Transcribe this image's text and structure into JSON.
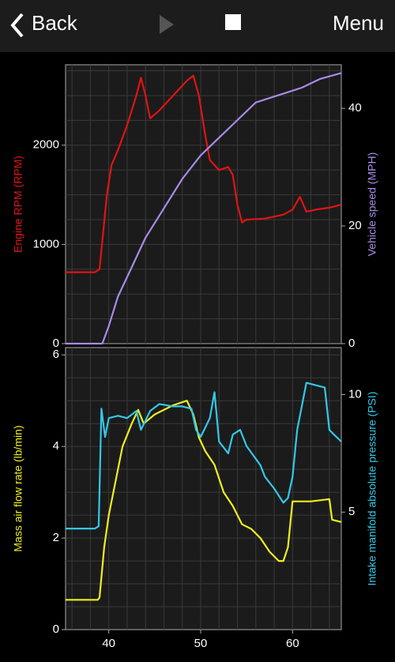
{
  "toolbar": {
    "back": "Back",
    "menu": "Menu"
  },
  "chart_data": [
    {
      "type": "line",
      "ylabel": "Engine RPM (RPM)",
      "y2label": "Vehicle speed (MPH)",
      "xlim": [
        35.3,
        65.3
      ],
      "xgrid": [
        36,
        38,
        40,
        42,
        44,
        46,
        48,
        50,
        52,
        54,
        56,
        58,
        60,
        62,
        64
      ],
      "ylim": [
        0,
        2810
      ],
      "yticks": [
        0,
        1000,
        2000
      ],
      "ygrid": [
        250,
        500,
        750,
        1000,
        1250,
        1500,
        1750,
        2000,
        2250,
        2500,
        2750
      ],
      "y2lim": [
        0,
        47.4
      ],
      "y2ticks": [
        0,
        20,
        40
      ],
      "series": [
        {
          "name": "Engine RPM",
          "color": "#e01414",
          "x": [
            35.3,
            38.5,
            39,
            39.8,
            40.3,
            41,
            42,
            43,
            43.5,
            44,
            44.5,
            45.5,
            46.5,
            47.5,
            48.5,
            49.2,
            49.8,
            50.5,
            51,
            52,
            53,
            53.5,
            54,
            54.5,
            55,
            57,
            59,
            60,
            60.8,
            61.5,
            62.5,
            64,
            65.3
          ],
          "values": [
            720,
            720,
            750,
            1500,
            1800,
            1950,
            2200,
            2500,
            2680,
            2500,
            2270,
            2350,
            2450,
            2550,
            2650,
            2700,
            2500,
            2100,
            1850,
            1750,
            1780,
            1700,
            1400,
            1220,
            1250,
            1260,
            1300,
            1350,
            1480,
            1330,
            1350,
            1370,
            1400
          ]
        },
        {
          "name": "Vehicle speed",
          "color": "#a88be8",
          "axis": "y2",
          "x": [
            35.3,
            39.3,
            40,
            41,
            42.5,
            44,
            46,
            48,
            50,
            52,
            54,
            56,
            58,
            60,
            61,
            63,
            65.3
          ],
          "values": [
            0,
            0,
            3,
            8,
            13,
            18,
            23,
            28,
            32,
            35,
            38,
            41,
            42,
            43,
            43.5,
            45,
            46
          ]
        }
      ]
    },
    {
      "type": "line",
      "ylabel": "Mass air flow rate (lb/min)",
      "y2label": "Intake manifold absolute pressure (PSI)",
      "xlim": [
        35.3,
        65.3
      ],
      "xticks": [
        40,
        50,
        60
      ],
      "xgrid": [
        36,
        38,
        40,
        42,
        44,
        46,
        48,
        50,
        52,
        54,
        56,
        58,
        60,
        62,
        64
      ],
      "ylim": [
        0,
        6.16
      ],
      "yticks": [
        0,
        2,
        4,
        6
      ],
      "ygrid": [
        0.5,
        1,
        1.5,
        2,
        2.5,
        3,
        3.5,
        4,
        4.5,
        5,
        5.5,
        6
      ],
      "y2lim": [
        0,
        12
      ],
      "y2ticks": [
        5,
        10
      ],
      "series": [
        {
          "name": "Mass air flow rate",
          "color": "#eeee22",
          "x": [
            35.3,
            38.8,
            39,
            39.5,
            40,
            41,
            41.5,
            42.5,
            43.2,
            43.8,
            45,
            47,
            48.5,
            49.2,
            49.8,
            50.5,
            51.5,
            52.5,
            53.5,
            54.5,
            55.5,
            56.5,
            57.5,
            58.5,
            59,
            59.5,
            60,
            62,
            64,
            64.3,
            65.3
          ],
          "values": [
            0.65,
            0.65,
            0.7,
            1.8,
            2.5,
            3.5,
            4,
            4.5,
            4.8,
            4.5,
            4.7,
            4.9,
            5.0,
            4.7,
            4.2,
            3.9,
            3.6,
            3.0,
            2.7,
            2.3,
            2.2,
            2.0,
            1.7,
            1.5,
            1.5,
            1.8,
            2.8,
            2.8,
            2.85,
            2.4,
            2.35
          ]
        },
        {
          "name": "Intake manifold absolute pressure",
          "color": "#34c8e8",
          "axis": "y2",
          "x": [
            35.3,
            38.5,
            38.9,
            39.2,
            39.6,
            40,
            41,
            42,
            43,
            43.5,
            44.5,
            45.5,
            47,
            48,
            49,
            49.5,
            50,
            51,
            51.5,
            52,
            53,
            53.5,
            54.3,
            55,
            56.5,
            57,
            58,
            59,
            59.5,
            60,
            60.5,
            61.5,
            62.5,
            63.5,
            64,
            64.5,
            65.3
          ],
          "values": [
            4.3,
            4.3,
            4.4,
            9.4,
            8.2,
            9.0,
            9.1,
            9.0,
            9.3,
            8.5,
            9.3,
            9.6,
            9.5,
            9.5,
            9.4,
            8.5,
            8.2,
            9.0,
            10.1,
            8.0,
            7.5,
            8.3,
            8.5,
            7.8,
            7.0,
            6.5,
            6.0,
            5.4,
            5.6,
            6.5,
            8.5,
            10.5,
            10.4,
            10.3,
            8.5,
            8.3,
            8.0
          ]
        }
      ]
    }
  ]
}
